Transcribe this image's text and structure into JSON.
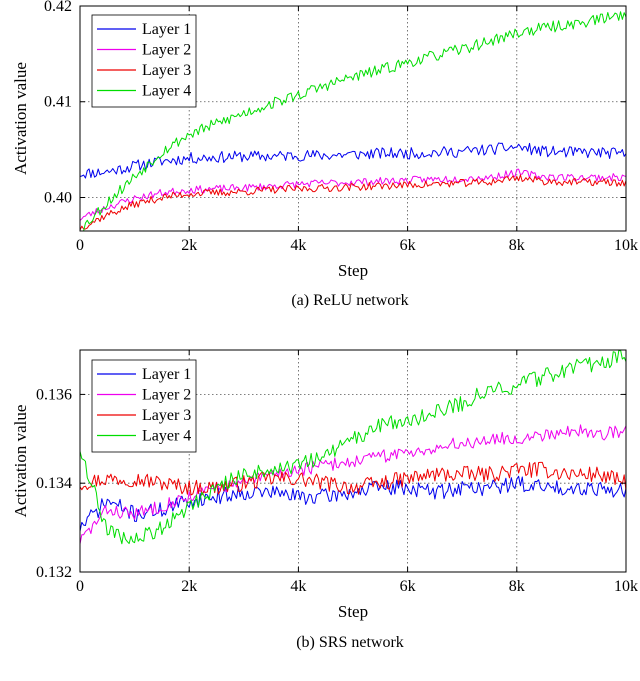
{
  "chart_data": [
    {
      "type": "line",
      "id": "relu",
      "caption": "(a) ReLU network",
      "xlabel": "Step",
      "ylabel": "Activation value",
      "xlim": [
        0,
        10000
      ],
      "ylim": [
        0.3965,
        0.42
      ],
      "xticks": [
        0,
        2000,
        4000,
        6000,
        8000,
        10000
      ],
      "xtick_labels": [
        "0",
        "2k",
        "4k",
        "6k",
        "8k",
        "10k"
      ],
      "yticks": [
        0.4,
        0.41,
        0.42
      ],
      "ytick_labels": [
        "0.40",
        "0.41",
        "0.42"
      ],
      "grid": true,
      "legend_position": "top-left",
      "x": [
        0,
        500,
        1000,
        1500,
        2000,
        2500,
        3000,
        3500,
        4000,
        4500,
        5000,
        5500,
        6000,
        6500,
        7000,
        7500,
        8000,
        8500,
        9000,
        9500,
        10000
      ],
      "series": [
        {
          "name": "Layer 1",
          "color": "#0000ee",
          "noise": 0.0006,
          "seed": 11,
          "values": [
            0.4025,
            0.4027,
            0.4033,
            0.4038,
            0.4041,
            0.4042,
            0.4043,
            0.4043,
            0.4044,
            0.4044,
            0.4045,
            0.4046,
            0.4046,
            0.4047,
            0.4048,
            0.405,
            0.4053,
            0.4048,
            0.4047,
            0.4047,
            0.4045
          ]
        },
        {
          "name": "Layer 2",
          "color": "#ee00ee",
          "noise": 0.0004,
          "seed": 23,
          "values": [
            0.3978,
            0.399,
            0.3999,
            0.4005,
            0.4008,
            0.4009,
            0.401,
            0.4012,
            0.4014,
            0.4015,
            0.4016,
            0.4017,
            0.4018,
            0.4019,
            0.402,
            0.4021,
            0.4026,
            0.4022,
            0.4021,
            0.4021,
            0.4021
          ]
        },
        {
          "name": "Layer 3",
          "color": "#ee0000",
          "noise": 0.0004,
          "seed": 37,
          "values": [
            0.3968,
            0.3982,
            0.3993,
            0.4,
            0.4004,
            0.4005,
            0.4006,
            0.4008,
            0.4009,
            0.401,
            0.4011,
            0.4012,
            0.4013,
            0.4014,
            0.4015,
            0.4016,
            0.4021,
            0.4017,
            0.4016,
            0.4016,
            0.4015
          ]
        },
        {
          "name": "Layer 4",
          "color": "#00dd00",
          "noise": 0.0006,
          "seed": 53,
          "values": [
            0.3966,
            0.3995,
            0.4022,
            0.4048,
            0.4066,
            0.4077,
            0.4088,
            0.4098,
            0.4107,
            0.4117,
            0.4126,
            0.4133,
            0.4141,
            0.4148,
            0.4155,
            0.4163,
            0.4172,
            0.4177,
            0.4181,
            0.4186,
            0.4192
          ]
        }
      ]
    },
    {
      "type": "line",
      "id": "srs",
      "caption": "(b) SRS network",
      "xlabel": "Step",
      "ylabel": "Activation value",
      "xlim": [
        0,
        10000
      ],
      "ylim": [
        0.132,
        0.137
      ],
      "xticks": [
        0,
        2000,
        4000,
        6000,
        8000,
        10000
      ],
      "xtick_labels": [
        "0",
        "2k",
        "4k",
        "6k",
        "8k",
        "10k"
      ],
      "yticks": [
        0.132,
        0.134,
        0.136
      ],
      "ytick_labels": [
        "0.132",
        "0.134",
        "0.136"
      ],
      "grid": true,
      "legend_position": "top-left",
      "x": [
        0,
        500,
        1000,
        1500,
        2000,
        2500,
        3000,
        3500,
        4000,
        4500,
        5000,
        5500,
        6000,
        6500,
        7000,
        7500,
        8000,
        8500,
        9000,
        9500,
        10000
      ],
      "series": [
        {
          "name": "Layer 1",
          "color": "#0000ee",
          "noise": 0.00018,
          "seed": 71,
          "values": [
            0.133,
            0.1336,
            0.1333,
            0.1334,
            0.1336,
            0.1337,
            0.1338,
            0.1338,
            0.1337,
            0.1337,
            0.1338,
            0.1339,
            0.1339,
            0.1338,
            0.1339,
            0.1339,
            0.134,
            0.1339,
            0.1339,
            0.1339,
            0.1338
          ]
        },
        {
          "name": "Layer 2",
          "color": "#ee00ee",
          "noise": 0.00015,
          "seed": 83,
          "values": [
            0.1327,
            0.1334,
            0.1333,
            0.1335,
            0.1337,
            0.1339,
            0.134,
            0.1342,
            0.1343,
            0.1344,
            0.1345,
            0.1346,
            0.1347,
            0.1348,
            0.1349,
            0.135,
            0.135,
            0.1351,
            0.1352,
            0.1351,
            0.1352
          ]
        },
        {
          "name": "Layer 3",
          "color": "#ee0000",
          "noise": 0.00018,
          "seed": 97,
          "values": [
            0.134,
            0.1341,
            0.1341,
            0.134,
            0.1339,
            0.1339,
            0.134,
            0.1341,
            0.1341,
            0.134,
            0.1339,
            0.134,
            0.1341,
            0.1342,
            0.1342,
            0.1342,
            0.1343,
            0.1343,
            0.1342,
            0.1342,
            0.134
          ]
        },
        {
          "name": "Layer 4",
          "color": "#00dd00",
          "noise": 0.00018,
          "seed": 109,
          "values": [
            0.1348,
            0.1329,
            0.1327,
            0.133,
            0.1335,
            0.1339,
            0.1342,
            0.1343,
            0.1344,
            0.1346,
            0.135,
            0.1353,
            0.1354,
            0.1356,
            0.1358,
            0.1361,
            0.1362,
            0.1364,
            0.1366,
            0.1367,
            0.1369
          ]
        }
      ]
    }
  ]
}
